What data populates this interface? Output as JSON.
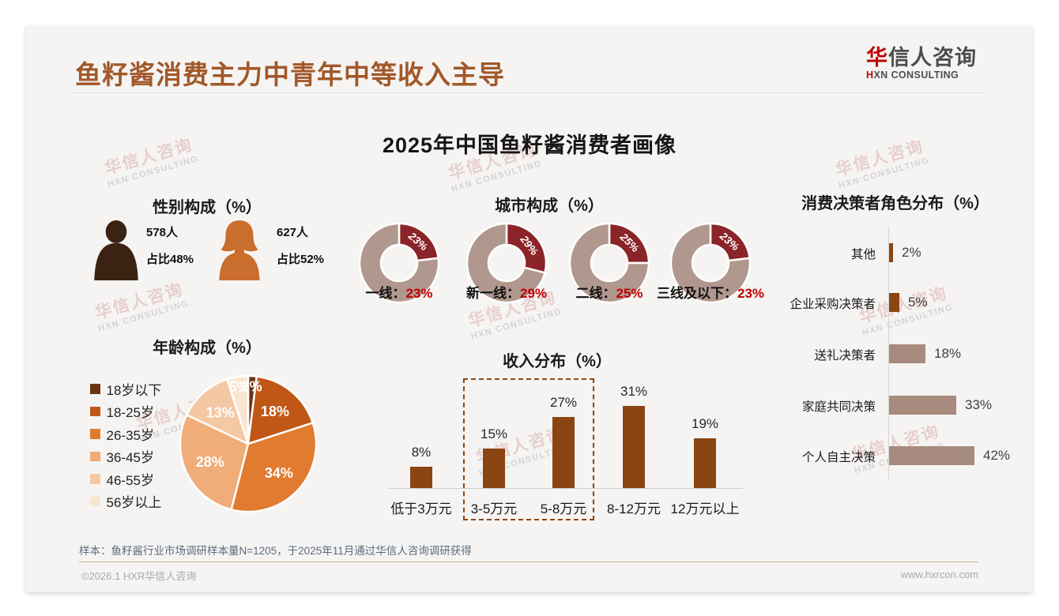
{
  "page": {
    "header_title": "鱼籽酱消费主力中青年中等收入主导",
    "logo": {
      "cn_accent": "华",
      "cn_rest": "信人咨询",
      "en_accent": "H",
      "en_rest": "XN CONSULTING"
    },
    "main_title": "2025年中国鱼籽酱消费者画像",
    "watermark": {
      "line1": "华信人咨询",
      "line2": "HXN CONSULTING"
    },
    "sample_note": "样本：鱼籽酱行业市场调研样本量N=1205，于2025年11月通过华信人咨询调研获得",
    "footer_left": "©2026.1 HXR华信人咨询",
    "footer_right": "www.hxrcon.com"
  },
  "colors": {
    "title_brown": "#A2582A",
    "accent_red": "#C00000",
    "card_bg": "#F5F4F2",
    "dark_bar_brown": "#8B4513",
    "taupe": "#A78B7E",
    "donut_red": "#8B2428",
    "donut_rest": "#B0988E"
  },
  "chart_data": [
    {
      "type": "pictogram",
      "title": "性别构成（%）",
      "items": [
        {
          "icon": "male-icon",
          "count_label": "578人",
          "share_label": "占比48%",
          "value": 48,
          "color": "#3B2314"
        },
        {
          "icon": "female-icon",
          "count_label": "627人",
          "share_label": "占比52%",
          "value": 52,
          "color": "#C96E2C"
        }
      ]
    },
    {
      "type": "donut",
      "title": "城市构成（%）",
      "slice_color": "#8B2428",
      "rest_color": "#B0988E",
      "value_color": "#C00000",
      "donuts": [
        {
          "label": "一线",
          "value": 23
        },
        {
          "label": "新一线",
          "value": 29
        },
        {
          "label": "二线",
          "value": 25
        },
        {
          "label": "三线及以下",
          "value": 23
        }
      ]
    },
    {
      "type": "pie",
      "title": "年龄构成（%）",
      "start_angle_deg": 0,
      "clockwise": true,
      "legend_position": "left",
      "segments": [
        {
          "label": "18岁以下",
          "value": 2,
          "color": "#6B3410"
        },
        {
          "label": "18-25岁",
          "value": 18,
          "color": "#C05717"
        },
        {
          "label": "26-35岁",
          "value": 34,
          "color": "#E07B30"
        },
        {
          "label": "36-45岁",
          "value": 28,
          "color": "#F0AC79"
        },
        {
          "label": "46-55岁",
          "value": 13,
          "color": "#F5C8A4"
        },
        {
          "label": "56岁以上",
          "value": 5,
          "color": "#FAE5D3"
        }
      ]
    },
    {
      "type": "bar",
      "title": "收入分布（%）",
      "categories": [
        "低于3万元",
        "3-5万元",
        "5-8万元",
        "8-12万元",
        "12万元以上"
      ],
      "values": [
        8,
        15,
        27,
        31,
        19
      ],
      "bar_color": "#8B4513",
      "highlight_box_categories": [
        "3-5万元",
        "5-8万元"
      ],
      "ylim": [
        0,
        35
      ],
      "grid": false
    },
    {
      "type": "hbar",
      "title": "消费决策者角色分布（%）",
      "categories": [
        "其他",
        "企业采购决策者",
        "送礼决策者",
        "家庭共同决策",
        "个人自主决策"
      ],
      "values": [
        2,
        5,
        18,
        33,
        42
      ],
      "bar_colors": [
        "#8B4513",
        "#8B4513",
        "#A78B7E",
        "#A78B7E",
        "#A78B7E"
      ]
    }
  ]
}
